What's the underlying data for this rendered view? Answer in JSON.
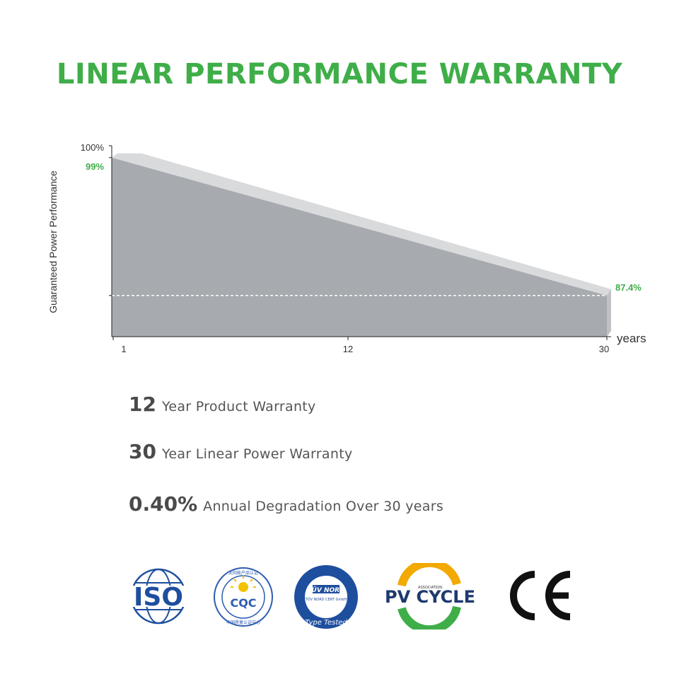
{
  "title": "LINEAR PERFORMANCE WARRANTY",
  "chart_data": {
    "type": "area",
    "xlabel": "years",
    "ylabel": "Guaranteed Power Performance",
    "x_ticks": [
      "1",
      "12",
      "30"
    ],
    "y_tick_top": "100%",
    "series": [
      {
        "x": [
          1,
          30
        ],
        "y": [
          99,
          87.4
        ]
      }
    ],
    "annotations": [
      {
        "text": "99%",
        "x": 1,
        "y": 99
      },
      {
        "text": "87.4%",
        "x": 30,
        "y": 87.4
      }
    ],
    "reference_line_y": 87.4,
    "colors": {
      "fill": "#a7aaaf",
      "top_bevel": "#d9dadc",
      "side": "#bfc1c4",
      "label": "#3fae49"
    }
  },
  "features": [
    {
      "number": "12",
      "text": "Year Product Warranty"
    },
    {
      "number": "30",
      "text": "Year Linear Power Warranty"
    },
    {
      "number": "0.40%",
      "text": "Annual Degradation Over 30 years"
    }
  ],
  "certifications": [
    {
      "name": "ISO",
      "text": "ISO"
    },
    {
      "name": "CQC",
      "text": "CQC",
      "top_text": "太阳能产品认证",
      "bottom_text": "中国质量认证中心"
    },
    {
      "name": "TUV NORD",
      "text": "TÜV NORD",
      "sub": "TÜV NORD CERT GmbH",
      "ring": "Type Tested"
    },
    {
      "name": "PV CYCLE",
      "text": "PV CYCLE",
      "small": "ASSOCIATION"
    },
    {
      "name": "CE",
      "text": "CE"
    }
  ],
  "colors": {
    "title": "#3fae49",
    "text": "#4a4a4a",
    "iso_blue": "#1e4e9e"
  }
}
